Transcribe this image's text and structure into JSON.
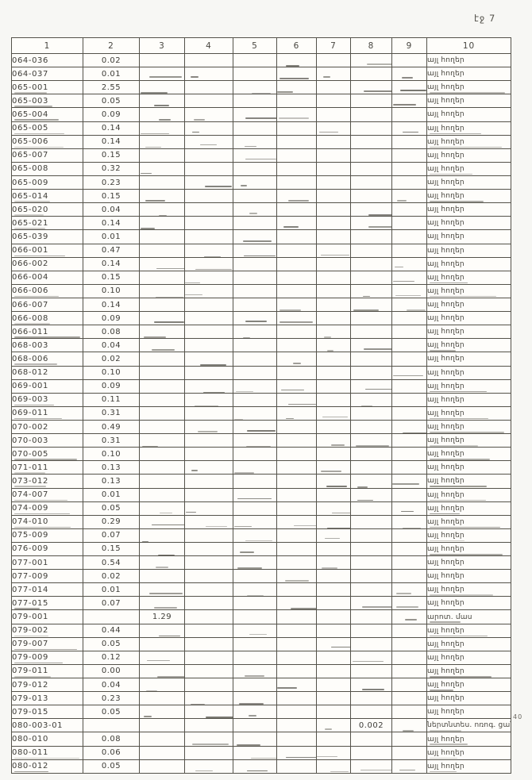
{
  "page": {
    "number_label": "էջ 7",
    "margin_note": "40"
  },
  "colors": {
    "paper": "#f7f7f4",
    "ink": "#45443f",
    "grid_line": "#55534c"
  },
  "table": {
    "headers": [
      "1",
      "2",
      "3",
      "4",
      "5",
      "6",
      "7",
      "8",
      "9",
      "10"
    ],
    "rows": [
      {
        "code": "064-036",
        "area": "0.02",
        "col3": "",
        "col8": "",
        "land_type": "այլ հողեր"
      },
      {
        "code": "064-037",
        "area": "0.01",
        "col3": "",
        "col8": "",
        "land_type": "այլ հողեր"
      },
      {
        "code": "065-001",
        "area": "2.55",
        "col3": "",
        "col8": "",
        "land_type": "այլ հողեր"
      },
      {
        "code": "065-003",
        "area": "0.05",
        "col3": "",
        "col8": "",
        "land_type": "այլ հողեր"
      },
      {
        "code": "065-004",
        "area": "0.09",
        "col3": "",
        "col8": "",
        "land_type": "այլ հողեր"
      },
      {
        "code": "065-005",
        "area": "0.14",
        "col3": "",
        "col8": "",
        "land_type": "այլ հողեր"
      },
      {
        "code": "065-006",
        "area": "0.14",
        "col3": "",
        "col8": "",
        "land_type": "այլ հողեր"
      },
      {
        "code": "065-007",
        "area": "0.15",
        "col3": "",
        "col8": "",
        "land_type": "այլ հողեր"
      },
      {
        "code": "065-008",
        "area": "0.32",
        "col3": "",
        "col8": "",
        "land_type": "այլ հողեր"
      },
      {
        "code": "065-009",
        "area": "0.23",
        "col3": "",
        "col8": "",
        "land_type": "այլ հողեր"
      },
      {
        "code": "065-014",
        "area": "0.15",
        "col3": "",
        "col8": "",
        "land_type": "այլ հողեր"
      },
      {
        "code": "065-020",
        "area": "0.04",
        "col3": "",
        "col8": "",
        "land_type": "այլ հողեր"
      },
      {
        "code": "065-021",
        "area": "0.14",
        "col3": "",
        "col8": "",
        "land_type": "այլ հողեր"
      },
      {
        "code": "065-039",
        "area": "0.01",
        "col3": "",
        "col8": "",
        "land_type": "այլ հողեր"
      },
      {
        "code": "066-001",
        "area": "0.47",
        "col3": "",
        "col8": "",
        "land_type": "այլ հողեր"
      },
      {
        "code": "066-002",
        "area": "0.14",
        "col3": "",
        "col8": "",
        "land_type": "այլ հողեր"
      },
      {
        "code": "066-004",
        "area": "0.15",
        "col3": "",
        "col8": "",
        "land_type": "այլ հողեր"
      },
      {
        "code": "066-006",
        "area": "0.10",
        "col3": "",
        "col8": "",
        "land_type": "այլ հողեր"
      },
      {
        "code": "066-007",
        "area": "0.14",
        "col3": "",
        "col8": "",
        "land_type": "այլ հողեր"
      },
      {
        "code": "066-008",
        "area": "0.09",
        "col3": "",
        "col8": "",
        "land_type": "այլ հողեր"
      },
      {
        "code": "066-011",
        "area": "0.08",
        "col3": "",
        "col8": "",
        "land_type": "այլ հողեր"
      },
      {
        "code": "068-003",
        "area": "0.04",
        "col3": "",
        "col8": "",
        "land_type": "այլ հողեր"
      },
      {
        "code": "068-006",
        "area": "0.02",
        "col3": "",
        "col8": "",
        "land_type": "այլ հողեր"
      },
      {
        "code": "068-012",
        "area": "0.10",
        "col3": "",
        "col8": "",
        "land_type": "այլ հողեր"
      },
      {
        "code": "069-001",
        "area": "0.09",
        "col3": "",
        "col8": "",
        "land_type": "այլ հողեր"
      },
      {
        "code": "069-003",
        "area": "0.11",
        "col3": "",
        "col8": "",
        "land_type": "այլ հողեր"
      },
      {
        "code": "069-011",
        "area": "0.31",
        "col3": "",
        "col8": "",
        "land_type": "այլ հողեր"
      },
      {
        "code": "070-002",
        "area": "0.49",
        "col3": "",
        "col8": "",
        "land_type": "այլ հողեր"
      },
      {
        "code": "070-003",
        "area": "0.31",
        "col3": "",
        "col8": "",
        "land_type": "այլ հողեր"
      },
      {
        "code": "070-005",
        "area": "0.10",
        "col3": "",
        "col8": "",
        "land_type": "այլ հողեր"
      },
      {
        "code": "071-011",
        "area": "0.13",
        "col3": "",
        "col8": "",
        "land_type": "այլ հողեր"
      },
      {
        "code": "073-012",
        "area": "0.13",
        "col3": "",
        "col8": "",
        "land_type": "այլ հողեր"
      },
      {
        "code": "074-007",
        "area": "0.01",
        "col3": "",
        "col8": "",
        "land_type": "այլ հողեր"
      },
      {
        "code": "074-009",
        "area": "0.05",
        "col3": "",
        "col8": "",
        "land_type": "այլ հողեր"
      },
      {
        "code": "074-010",
        "area": "0.29",
        "col3": "",
        "col8": "",
        "land_type": "այլ հողեր"
      },
      {
        "code": "075-009",
        "area": "0.07",
        "col3": "",
        "col8": "",
        "land_type": "այլ հողեր"
      },
      {
        "code": "076-009",
        "area": "0.15",
        "col3": "",
        "col8": "",
        "land_type": "այլ հողեր"
      },
      {
        "code": "077-001",
        "area": "0.54",
        "col3": "",
        "col8": "",
        "land_type": "այլ հողեր"
      },
      {
        "code": "077-009",
        "area": "0.02",
        "col3": "",
        "col8": "",
        "land_type": "այլ հողեր"
      },
      {
        "code": "077-014",
        "area": "0.01",
        "col3": "",
        "col8": "",
        "land_type": "այլ հողեր"
      },
      {
        "code": "077-015",
        "area": "0.07",
        "col3": "",
        "col8": "",
        "land_type": "այլ հողեր"
      },
      {
        "code": "079-001",
        "area": "",
        "col3": "1.29",
        "col8": "",
        "land_type": "արոտ. մաս"
      },
      {
        "code": "079-002",
        "area": "0.44",
        "col3": "",
        "col8": "",
        "land_type": "այլ հողեր"
      },
      {
        "code": "079-007",
        "area": "0.05",
        "col3": "",
        "col8": "",
        "land_type": "այլ հողեր"
      },
      {
        "code": "079-009",
        "area": "0.12",
        "col3": "",
        "col8": "",
        "land_type": "այլ հողեր"
      },
      {
        "code": "079-011",
        "area": "0.00",
        "col3": "",
        "col8": "",
        "land_type": "այլ հողեր"
      },
      {
        "code": "079-012",
        "area": "0.04",
        "col3": "",
        "col8": "",
        "land_type": "այլ հողեր"
      },
      {
        "code": "079-013",
        "area": "0.23",
        "col3": "",
        "col8": "",
        "land_type": "այլ հողեր"
      },
      {
        "code": "079-015",
        "area": "0.05",
        "col3": "",
        "col8": "",
        "land_type": "այլ հողեր"
      },
      {
        "code": "080-003-01",
        "area": "",
        "col3": "",
        "col8": "0.002",
        "land_type": "ներտնտես. ոռոգ. ցանց"
      },
      {
        "code": "080-010",
        "area": "0.08",
        "col3": "",
        "col8": "",
        "land_type": "այլ հողեր"
      },
      {
        "code": "080-011",
        "area": "0.06",
        "col3": "",
        "col8": "",
        "land_type": "այլ հողեր"
      },
      {
        "code": "080-012",
        "area": "0.05",
        "col3": "",
        "col8": "",
        "land_type": "այլ հողեր"
      }
    ]
  }
}
